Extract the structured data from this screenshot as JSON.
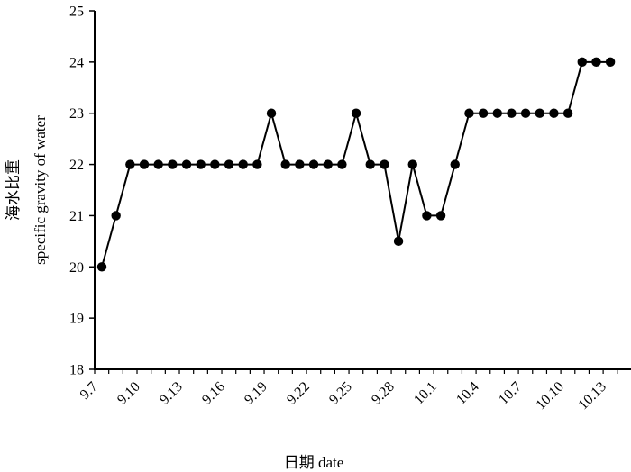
{
  "chart_data": {
    "type": "line",
    "xlabel": "日期 date",
    "ylabel_cn": "海水比重",
    "ylabel_en": "specific gravity  of water",
    "ylim": [
      18,
      25
    ],
    "yticks": [
      18,
      19,
      20,
      21,
      22,
      23,
      24,
      25
    ],
    "x_tick_labels": [
      "9.7",
      "9.10",
      "9.13",
      "9.16",
      "9.19",
      "9.22",
      "9.25",
      "9.28",
      "10.1",
      "10.4",
      "10.7",
      "10.10",
      "10.13"
    ],
    "series": [
      {
        "values": [
          20,
          21,
          22,
          22,
          22,
          22,
          22,
          22,
          22,
          22,
          22,
          22,
          23,
          22,
          22,
          22,
          22,
          22,
          23,
          22,
          22,
          20.5,
          22,
          21,
          21,
          22,
          23,
          23,
          23,
          23,
          23,
          23,
          23,
          23,
          24,
          24,
          24
        ]
      }
    ],
    "marker": "circle",
    "grid": false,
    "line_color": "#000000"
  }
}
